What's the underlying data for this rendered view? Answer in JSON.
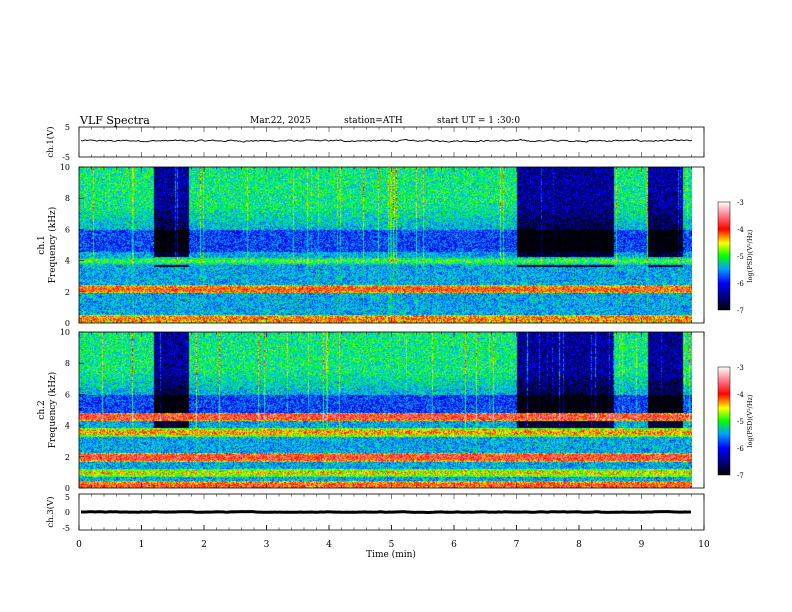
{
  "header": {
    "title": "VLF Spectra",
    "date": "Mar.22, 2025",
    "station": "station=ATH",
    "start": "start UT =  1 :30:0"
  },
  "colors": {
    "spectrum_scale": [
      "#000080",
      "#0000ff",
      "#0080ff",
      "#00ffff",
      "#00ff00",
      "#ffff00",
      "#ff0000",
      "#ff80a0",
      "#ffffff"
    ]
  },
  "chart_data": [
    {
      "id": "ch1-waveform",
      "type": "line",
      "ylabel": "ch.1(V)",
      "ylim": [
        -5,
        5
      ],
      "yticks": [
        "5",
        "-5"
      ],
      "xlim": [
        0,
        10
      ],
      "level": 0.4,
      "noise_amplitude": 0.5
    },
    {
      "id": "ch1-spectrogram",
      "type": "heatmap",
      "ylabel_channel": "ch.1",
      "ylabel": "Frequency (kHz)",
      "ylim": [
        0,
        10
      ],
      "yticks": [
        "0",
        "2",
        "4",
        "6",
        "8",
        "10"
      ],
      "xlim": [
        0,
        10
      ],
      "colorbar": {
        "label": "log(PSD)(V²/Hz)",
        "range": [
          -7,
          -3
        ],
        "ticks": [
          "-3",
          "-4",
          "-5",
          "-6",
          "-7"
        ]
      },
      "quiet_intervals_min": [
        [
          1.2,
          1.75
        ],
        [
          7.0,
          8.55
        ],
        [
          9.1,
          9.65
        ]
      ],
      "bands_khz": [
        {
          "f": 4.0,
          "level": -5.0
        },
        {
          "f": 3.3,
          "level": -6.2
        },
        {
          "f": 2.2,
          "level": -4.0
        },
        {
          "f": 1.5,
          "level": -6.0
        },
        {
          "f": 0.9,
          "level": -6.3
        },
        {
          "f": 0.3,
          "level": -4.2
        }
      ]
    },
    {
      "id": "ch2-spectrogram",
      "type": "heatmap",
      "ylabel_channel": "ch.2",
      "ylabel": "Frequency (kHz)",
      "ylim": [
        0,
        10
      ],
      "yticks": [
        "0",
        "2",
        "4",
        "6",
        "8",
        "10"
      ],
      "xlim": [
        0,
        10
      ],
      "colorbar": {
        "label": "log(PSD)(V²/Hz)",
        "range": [
          -7,
          -3
        ],
        "ticks": [
          "-3",
          "-4",
          "-5",
          "-6",
          "-7"
        ]
      },
      "quiet_intervals_min": [
        [
          1.2,
          1.75
        ],
        [
          7.0,
          8.55
        ],
        [
          9.1,
          9.65
        ]
      ],
      "bands_khz": [
        {
          "f": 4.6,
          "level": -3.8
        },
        {
          "f": 3.6,
          "level": -4.3
        },
        {
          "f": 2.0,
          "level": -3.8
        },
        {
          "f": 1.0,
          "level": -4.5
        },
        {
          "f": 0.2,
          "level": -4.0
        }
      ]
    },
    {
      "id": "ch3-waveform",
      "type": "line",
      "ylabel": "ch.3(V)",
      "ylim": [
        -5,
        5
      ],
      "yticks": [
        "5",
        "0",
        "-5"
      ],
      "xlim": [
        0,
        10
      ],
      "level": 0.0,
      "noise_amplitude": 0.15,
      "xlabel": "Time (min)",
      "xticks": [
        "0",
        "1",
        "2",
        "3",
        "4",
        "5",
        "6",
        "7",
        "8",
        "9",
        "10"
      ]
    }
  ]
}
